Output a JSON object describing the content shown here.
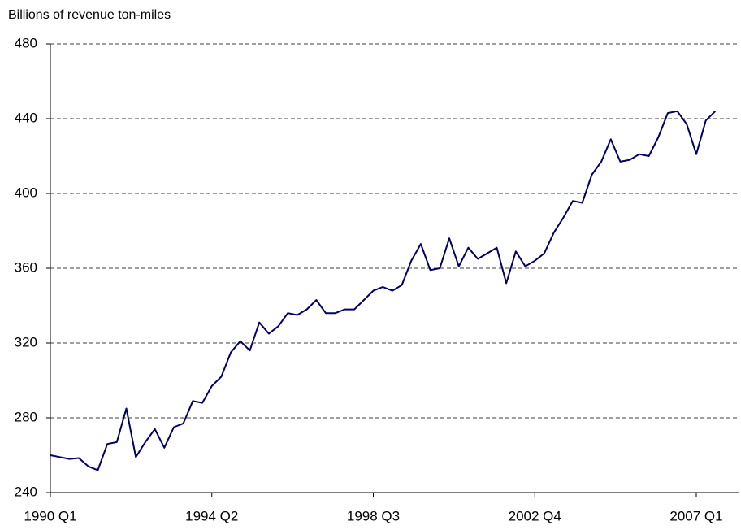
{
  "chart_data": {
    "type": "line",
    "title": "Billions of revenue ton-miles",
    "categories": [
      "1990 Q1",
      null,
      null,
      null,
      null,
      null,
      null,
      null,
      null,
      null,
      null,
      null,
      null,
      null,
      null,
      null,
      null,
      "1994 Q2",
      null,
      null,
      null,
      null,
      null,
      null,
      null,
      null,
      null,
      null,
      null,
      null,
      null,
      null,
      null,
      null,
      "1998 Q3",
      null,
      null,
      null,
      null,
      null,
      null,
      null,
      null,
      null,
      null,
      null,
      null,
      null,
      null,
      null,
      null,
      "2002 Q4",
      null,
      null,
      null,
      null,
      null,
      null,
      null,
      null,
      null,
      null,
      null,
      null,
      null,
      null,
      null,
      null,
      "2007 Q1",
      null,
      null
    ],
    "series": [
      {
        "color": "#000066",
        "values": [
          260,
          259,
          258,
          258.5,
          254,
          252,
          266,
          267,
          285,
          259,
          267,
          274,
          264,
          275,
          277,
          289,
          288,
          297,
          302,
          315,
          321,
          316,
          331,
          325,
          329,
          336,
          335,
          338,
          343,
          336,
          336,
          338,
          338,
          343,
          348,
          350,
          348,
          351,
          364,
          373,
          359,
          360,
          376,
          361,
          371,
          365,
          368,
          371,
          352,
          369,
          361,
          364,
          368,
          379,
          387,
          396,
          395,
          410,
          417,
          429,
          417,
          418,
          421,
          420,
          430,
          443,
          444,
          437,
          421,
          439,
          444
        ]
      }
    ],
    "ylim": [
      240,
      480
    ],
    "yticks": [
      240,
      280,
      320,
      360,
      400,
      440,
      480
    ],
    "grid": true
  }
}
